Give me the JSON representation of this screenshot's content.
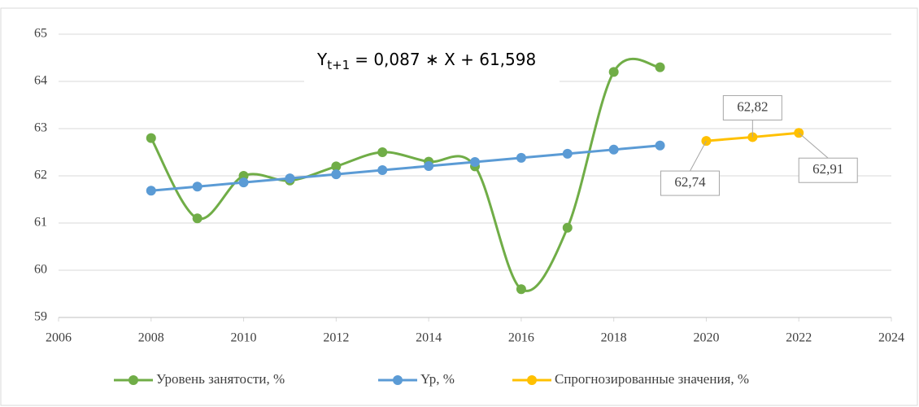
{
  "chart_data": {
    "type": "line",
    "annotation": {
      "base": "Y",
      "sub": "t+1",
      "rest": "= 0,087 ∗ X + 61,598"
    },
    "xlim": [
      2006,
      2024
    ],
    "xticks": [
      2006,
      2008,
      2010,
      2012,
      2014,
      2016,
      2018,
      2020,
      2022,
      2024
    ],
    "ylim": [
      59,
      65
    ],
    "yticks": [
      59,
      60,
      61,
      62,
      63,
      64,
      65
    ],
    "grid": true,
    "legend": "bottom",
    "series": [
      {
        "name": "Уровень занятости, %",
        "color": "#70ad47",
        "smooth": true,
        "x": [
          2008,
          2009,
          2010,
          2011,
          2012,
          2013,
          2014,
          2015,
          2016,
          2017,
          2018,
          2019
        ],
        "values": [
          62.8,
          61.1,
          62.0,
          61.9,
          62.2,
          62.5,
          62.3,
          62.2,
          59.6,
          60.9,
          64.2,
          64.3
        ]
      },
      {
        "name": "Yp, %",
        "color": "#5b9bd5",
        "smooth": false,
        "x": [
          2008,
          2009,
          2010,
          2011,
          2012,
          2013,
          2014,
          2015,
          2016,
          2017,
          2018,
          2019
        ],
        "values": [
          61.685,
          61.772,
          61.859,
          61.946,
          62.033,
          62.12,
          62.207,
          62.294,
          62.381,
          62.468,
          62.555,
          62.642
        ]
      },
      {
        "name": "Спрогнозированные значения, %",
        "color": "#ffc000",
        "smooth": false,
        "x": [
          2020,
          2021,
          2022
        ],
        "values": [
          62.74,
          62.82,
          62.91
        ],
        "value_labels": [
          "62,74",
          "62,82",
          "62,91"
        ]
      }
    ]
  }
}
